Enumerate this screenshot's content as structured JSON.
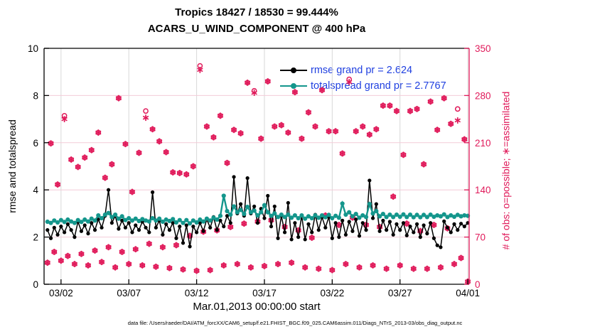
{
  "title": {
    "line1": "Tropics 18427 / 18530 = 99.444%",
    "line2": "ACARS_U_WIND_COMPONENT @ 400 hPa"
  },
  "axes": {
    "left": {
      "label": "rmse and totalspread",
      "ticks": [
        0,
        2,
        4,
        6,
        8,
        10
      ]
    },
    "right": {
      "label": "# of obs: o=possible; ∗=assimilated",
      "ticks": [
        0,
        70,
        140,
        210,
        280,
        350
      ]
    },
    "bottom": {
      "label": "Mar.01,2013 00:00:00 start",
      "tick_days": [
        2,
        7,
        12,
        17,
        22,
        27,
        32
      ],
      "tick_labels": [
        "03/02",
        "03/07",
        "03/12",
        "03/17",
        "03/22",
        "03/27",
        "04/01"
      ]
    }
  },
  "legend": [
    {
      "label": "rmse grand pr = 2.624",
      "color": "#000000"
    },
    {
      "label": "totalspread grand pr = 2.7767",
      "color": "#14968c"
    }
  ],
  "caption": "data file: /Users/raeder/DAI/ATM_forcXX/CAM6_setup/f.e21.FHIST_BGC.f09_025.CAM6assim.011/Diags_NTrS_2013-03/obs_diag_output.nc",
  "colors": {
    "rmse": "#000000",
    "totalspread": "#14968c",
    "obs": "#e01a5a",
    "legend_text": "#2040e0",
    "grid_horizontal": "#f3cbd8",
    "grid_vertical": "#d8d8d8",
    "axis_left": "#000000",
    "axis_right": "#e01a5a"
  },
  "chart_data": {
    "type": "line",
    "x_axis": "days since Mar.01,2013 00:00 (6-hourly bins)",
    "x_start": 1.0,
    "x_step": 0.25,
    "xlim": [
      0.75,
      32.1
    ],
    "ylim_left": [
      0,
      10
    ],
    "ylim_right": [
      0,
      350
    ],
    "grid": true,
    "legend_position": "top-center",
    "series": [
      {
        "name": "rmse",
        "axis": "left",
        "marker": "dot",
        "grand_pr": 2.624,
        "values": [
          2.3,
          1.95,
          2.4,
          2.1,
          2.45,
          2.2,
          2.55,
          2.3,
          2.0,
          2.65,
          2.25,
          2.5,
          2.15,
          2.6,
          2.3,
          2.75,
          2.4,
          2.9,
          4.0,
          2.6,
          2.9,
          2.35,
          2.7,
          2.4,
          2.6,
          2.2,
          2.5,
          2.3,
          2.65,
          2.4,
          2.2,
          3.9,
          2.4,
          2.7,
          2.1,
          2.55,
          2.3,
          2.6,
          1.95,
          2.45,
          1.75,
          2.5,
          1.6,
          2.45,
          2.2,
          2.6,
          2.25,
          2.75,
          2.4,
          2.85,
          2.3,
          2.7,
          2.45,
          2.9,
          2.6,
          4.55,
          3.0,
          3.4,
          2.9,
          4.5,
          3.0,
          3.3,
          2.6,
          3.2,
          2.8,
          3.75,
          2.45,
          3.3,
          1.95,
          2.9,
          2.2,
          3.45,
          1.9,
          2.6,
          2.0,
          2.9,
          1.9,
          2.55,
          2.2,
          2.95,
          2.3,
          2.85,
          2.4,
          2.85,
          1.95,
          2.6,
          2.0,
          2.7,
          2.1,
          2.65,
          2.25,
          2.75,
          2.05,
          2.6,
          2.3,
          4.4,
          2.8,
          3.4,
          2.25,
          2.7,
          2.3,
          2.65,
          2.1,
          2.55,
          2.3,
          2.6,
          2.07,
          2.45,
          2.2,
          2.55,
          2.0,
          2.5,
          2.15,
          2.6,
          1.95,
          1.65,
          1.57,
          2.67,
          2.4,
          2.2,
          2.55,
          2.3,
          2.57,
          2.45,
          2.6
        ]
      },
      {
        "name": "totalspread",
        "axis": "left",
        "marker": "dot",
        "grand_pr": 2.7767,
        "values": [
          2.65,
          2.6,
          2.7,
          2.62,
          2.72,
          2.64,
          2.74,
          2.66,
          2.6,
          2.72,
          2.64,
          2.74,
          2.66,
          2.78,
          2.7,
          2.92,
          2.8,
          2.95,
          3.02,
          2.85,
          2.95,
          2.78,
          2.88,
          2.72,
          2.8,
          2.7,
          2.78,
          2.68,
          2.76,
          2.7,
          2.66,
          2.8,
          2.7,
          2.78,
          2.65,
          2.74,
          2.68,
          2.76,
          2.62,
          2.72,
          2.6,
          2.72,
          2.58,
          2.7,
          2.62,
          2.74,
          2.66,
          2.78,
          2.7,
          2.82,
          2.74,
          2.9,
          3.75,
          3.1,
          2.95,
          3.3,
          3.05,
          3.15,
          2.98,
          3.28,
          3.05,
          3.12,
          2.92,
          3.05,
          3.35,
          3.05,
          2.9,
          3.0,
          2.85,
          2.95,
          2.85,
          2.95,
          2.82,
          2.92,
          2.8,
          2.92,
          2.78,
          2.88,
          2.8,
          2.92,
          2.82,
          2.92,
          2.84,
          2.94,
          2.8,
          2.9,
          2.82,
          3.42,
          2.95,
          3.05,
          2.88,
          2.98,
          2.82,
          2.92,
          2.85,
          3.4,
          3.0,
          3.1,
          2.88,
          2.98,
          2.85,
          2.95,
          2.85,
          2.95,
          2.86,
          2.96,
          2.85,
          2.95,
          2.84,
          2.94,
          2.84,
          2.94,
          2.85,
          2.95,
          2.86,
          2.92,
          2.88,
          2.96,
          2.85,
          2.92,
          2.86,
          2.94,
          2.88,
          2.92,
          2.9
        ]
      },
      {
        "name": "obs_possible",
        "axis": "right",
        "marker": "o",
        "total": 18530,
        "values": [
          32,
          209,
          48,
          148,
          35,
          250,
          42,
          185,
          30,
          174,
          45,
          188,
          28,
          199,
          50,
          225,
          33,
          158,
          55,
          178,
          25,
          276,
          48,
          208,
          30,
          137,
          52,
          195,
          28,
          257,
          60,
          230,
          26,
          212,
          55,
          196,
          24,
          166,
          58,
          165,
          22,
          163,
          72,
          175,
          20,
          324,
          78,
          234,
          21,
          218,
          80,
          250,
          28,
          180,
          85,
          229,
          30,
          224,
          90,
          299,
          25,
          287,
          93,
          216,
          27,
          301,
          95,
          234,
          30,
          236,
          85,
          225,
          32,
          285,
          80,
          216,
          25,
          255,
          69,
          234,
          23,
          288,
          102,
          227,
          21,
          227,
          88,
          194,
          30,
          304,
          99,
          227,
          25,
          234,
          88,
          222,
          28,
          230,
          85,
          265,
          23,
          265,
          130,
          257,
          28,
          192,
          90,
          257,
          23,
          260,
          79,
          178,
          23,
          271,
          88,
          229,
          25,
          276,
          83,
          238,
          30,
          260,
          39,
          215,
          4
        ]
      },
      {
        "name": "obs_assimilated",
        "axis": "right",
        "marker": "asterisk",
        "total": 18427,
        "values": [
          32,
          209,
          48,
          148,
          35,
          245,
          42,
          185,
          30,
          174,
          45,
          188,
          28,
          199,
          50,
          225,
          33,
          158,
          55,
          178,
          25,
          276,
          48,
          208,
          30,
          137,
          52,
          195,
          28,
          247,
          60,
          230,
          26,
          212,
          55,
          196,
          24,
          166,
          58,
          165,
          22,
          163,
          72,
          175,
          20,
          318,
          78,
          234,
          21,
          218,
          80,
          250,
          28,
          180,
          85,
          229,
          30,
          224,
          90,
          299,
          25,
          284,
          93,
          216,
          27,
          301,
          95,
          234,
          30,
          236,
          85,
          225,
          32,
          285,
          80,
          216,
          25,
          255,
          69,
          234,
          23,
          288,
          102,
          227,
          21,
          227,
          88,
          194,
          30,
          300,
          99,
          227,
          25,
          234,
          88,
          222,
          28,
          230,
          85,
          265,
          23,
          265,
          130,
          257,
          28,
          192,
          90,
          257,
          23,
          260,
          79,
          178,
          23,
          271,
          88,
          229,
          25,
          276,
          83,
          238,
          30,
          243,
          39,
          215,
          4
        ]
      }
    ]
  }
}
